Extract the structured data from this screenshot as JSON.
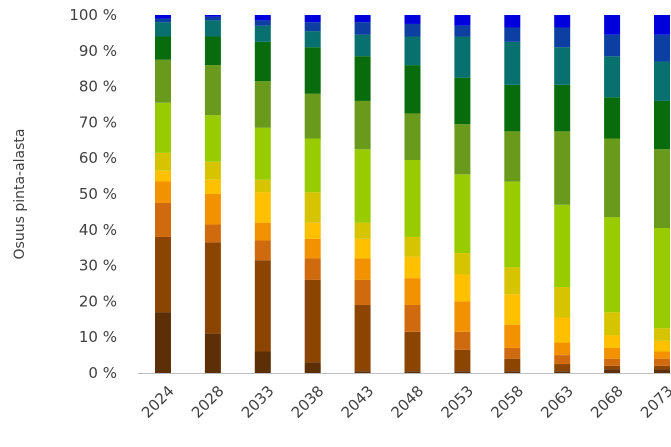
{
  "chart_data": {
    "type": "bar",
    "stacked": true,
    "normalized": true,
    "ylabel": "Osuus pinta-alasta",
    "xlabel": "",
    "title": "",
    "ylim": [
      0,
      100
    ],
    "y_ticks": [
      "0 %",
      "10 %",
      "20 %",
      "30 %",
      "40 %",
      "50 %",
      "60 %",
      "70 %",
      "80 %",
      "90 %",
      "100 %"
    ],
    "grid": false,
    "legend": "none",
    "categories": [
      "2024",
      "2028",
      "2033",
      "2038",
      "2043",
      "2048",
      "2053",
      "2058",
      "2063",
      "2068",
      "2073"
    ],
    "series": [
      {
        "color": "#5c2f06",
        "values": [
          17.0,
          11.0,
          6.0,
          3.0,
          0.5,
          0.5,
          0.5,
          0.5,
          0.5,
          1.0,
          1.0
        ]
      },
      {
        "color": "#8b4500",
        "values": [
          21.0,
          25.5,
          25.5,
          23.0,
          18.5,
          11.0,
          6.0,
          3.5,
          2.0,
          1.0,
          1.0
        ]
      },
      {
        "color": "#d06a0e",
        "values": [
          9.5,
          5.0,
          5.5,
          6.0,
          7.0,
          7.5,
          5.0,
          3.0,
          2.5,
          2.0,
          2.0
        ]
      },
      {
        "color": "#f39200",
        "values": [
          6.0,
          8.5,
          5.0,
          5.5,
          6.0,
          7.5,
          8.5,
          6.5,
          3.5,
          3.0,
          2.0
        ]
      },
      {
        "color": "#ffc000",
        "values": [
          3.0,
          4.0,
          8.5,
          4.5,
          5.5,
          6.0,
          7.5,
          8.5,
          7.0,
          3.5,
          3.0
        ]
      },
      {
        "color": "#d6c400",
        "values": [
          5.0,
          5.0,
          3.5,
          8.5,
          4.5,
          5.5,
          6.0,
          7.5,
          8.5,
          6.5,
          3.5
        ]
      },
      {
        "color": "#99cc00",
        "values": [
          14.0,
          13.0,
          14.5,
          15.0,
          20.5,
          21.5,
          22.0,
          24.0,
          23.0,
          26.5,
          28.0
        ]
      },
      {
        "color": "#6a9a1b",
        "values": [
          12.0,
          14.0,
          13.0,
          12.5,
          13.5,
          13.0,
          14.0,
          14.0,
          20.5,
          22.0,
          22.0
        ]
      },
      {
        "color": "#086c0d",
        "values": [
          6.5,
          8.0,
          11.0,
          13.0,
          12.5,
          13.5,
          13.0,
          13.0,
          13.0,
          11.5,
          13.5
        ]
      },
      {
        "color": "#097070",
        "values": [
          4.0,
          4.5,
          4.5,
          4.5,
          6.0,
          8.0,
          11.5,
          12.0,
          10.5,
          11.5,
          11.0
        ]
      },
      {
        "color": "#0d3fa3",
        "values": [
          1.0,
          1.0,
          1.5,
          2.5,
          3.5,
          3.5,
          3.0,
          4.0,
          5.5,
          6.0,
          7.5
        ]
      },
      {
        "color": "#0000dd",
        "values": [
          1.0,
          0.5,
          1.5,
          2.0,
          2.0,
          2.5,
          3.0,
          3.5,
          3.5,
          5.5,
          5.5
        ]
      }
    ]
  }
}
